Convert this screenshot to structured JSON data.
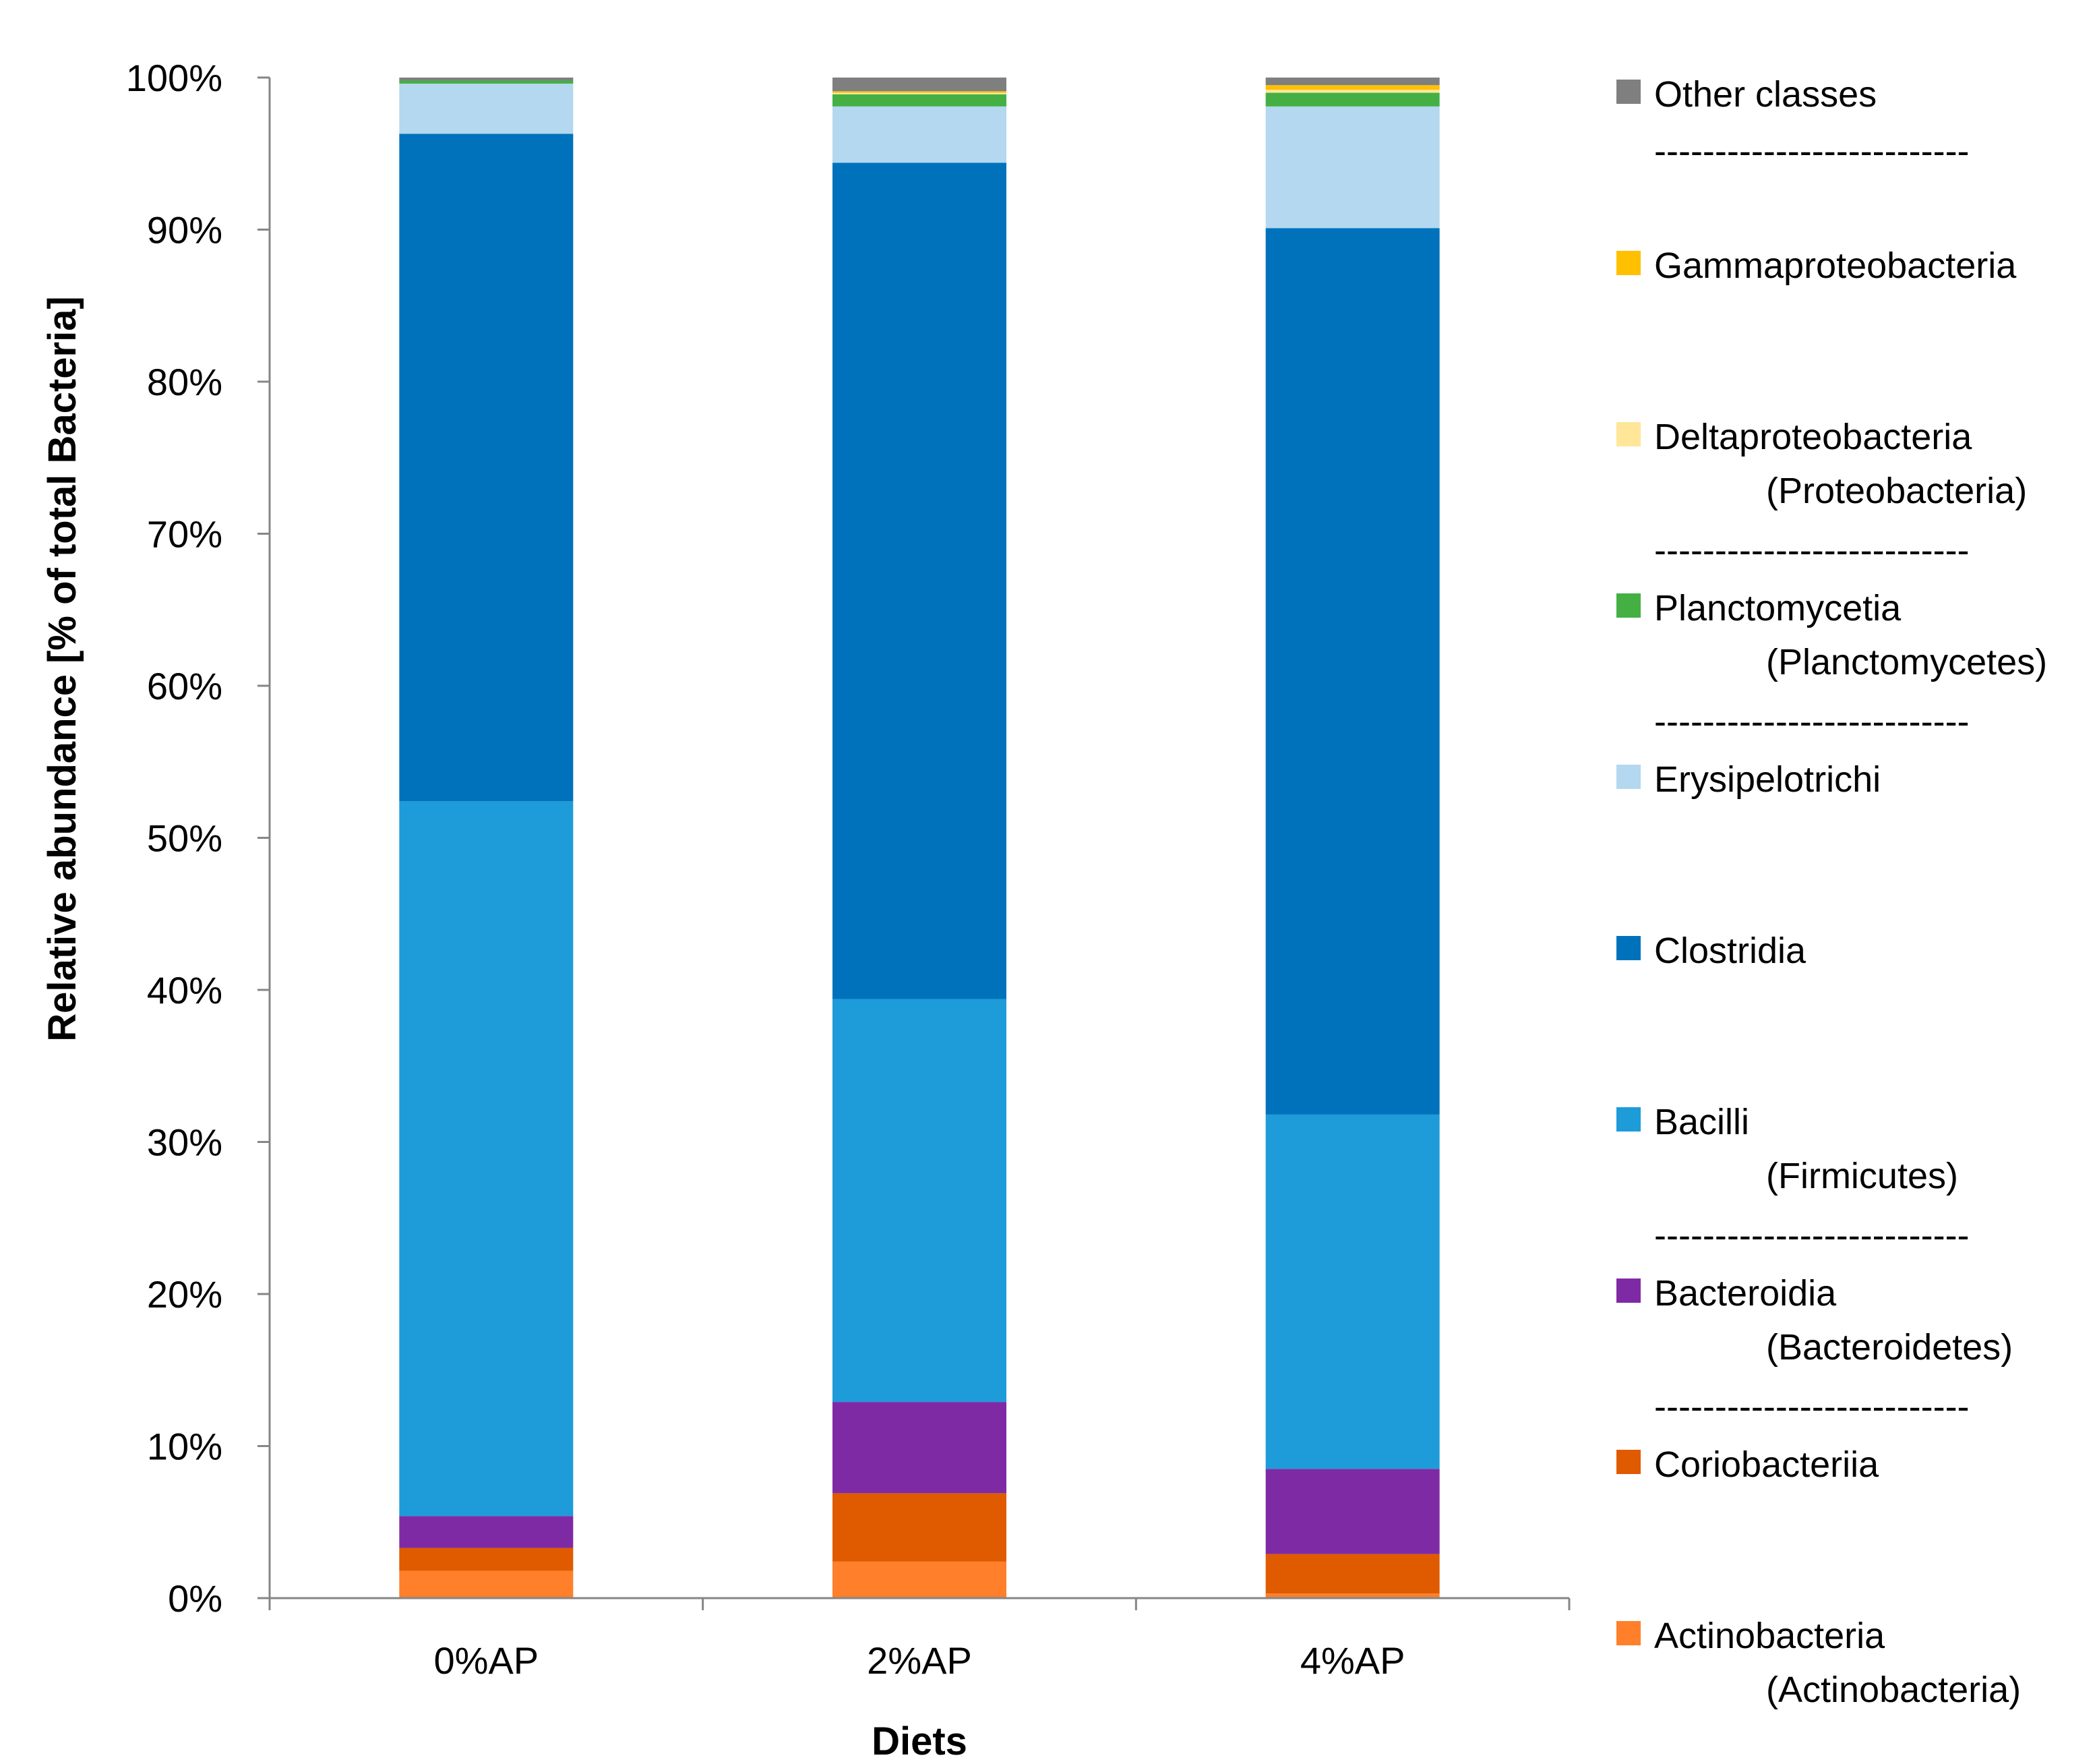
{
  "chart_data": {
    "type": "bar",
    "stacked": true,
    "title": "",
    "xlabel": "Diets",
    "ylabel": "Relative abundance [% of total Bacteria]",
    "ylim": [
      0,
      100
    ],
    "yticks": [
      "0%",
      "10%",
      "20%",
      "30%",
      "40%",
      "50%",
      "60%",
      "70%",
      "80%",
      "90%",
      "100%"
    ],
    "categories": [
      "0%AP",
      "2%AP",
      "4%AP"
    ],
    "series": [
      {
        "name": "Actinobacteria",
        "color": "#FF7F2A",
        "values": [
          1.8,
          2.4,
          0.3
        ]
      },
      {
        "name": "Coriobacteriia",
        "color": "#E05A00",
        "values": [
          1.5,
          4.5,
          2.6
        ]
      },
      {
        "name": "Bacteroidia",
        "color": "#7F2AA5",
        "values": [
          2.1,
          6.0,
          5.6
        ]
      },
      {
        "name": "Bacilli",
        "color": "#1E9BD9",
        "values": [
          47.0,
          26.5,
          23.3
        ]
      },
      {
        "name": "Clostridia",
        "color": "#0072BB",
        "values": [
          43.9,
          55.0,
          58.3
        ]
      },
      {
        "name": "Erysipelotrichi",
        "color": "#B3D8EF",
        "values": [
          3.3,
          3.7,
          8.0
        ]
      },
      {
        "name": "Planctomycetia",
        "color": "#44B044",
        "values": [
          0.2,
          0.8,
          0.9
        ]
      },
      {
        "name": "Deltaproteobacteria",
        "color": "#FFE699",
        "values": [
          0.0,
          0.1,
          0.2
        ]
      },
      {
        "name": "Gammaproteobacteria",
        "color": "#FFC000",
        "values": [
          0.0,
          0.1,
          0.3
        ]
      },
      {
        "name": "Other classes",
        "color": "#7F7F7F",
        "values": [
          0.2,
          0.9,
          0.5
        ]
      }
    ],
    "legend": {
      "position": "right",
      "separator": "--------------------------",
      "entries": [
        {
          "series": "Other classes",
          "label": "Other classes",
          "phylum": "",
          "separator_after": true
        },
        {
          "series": "Gammaproteobacteria",
          "label": "Gammaproteobacteria",
          "phylum": "",
          "separator_after": false
        },
        {
          "series": "Deltaproteobacteria",
          "label": "Deltaproteobacteria",
          "phylum": "(Proteobacteria)",
          "separator_after": true
        },
        {
          "series": "Planctomycetia",
          "label": "Planctomycetia",
          "phylum": "(Planctomycetes)",
          "separator_after": true
        },
        {
          "series": "Erysipelotrichi",
          "label": "Erysipelotrichi",
          "phylum": "",
          "separator_after": false
        },
        {
          "series": "Clostridia",
          "label": "Clostridia",
          "phylum": "",
          "separator_after": false
        },
        {
          "series": "Bacilli",
          "label": "Bacilli",
          "phylum": "(Firmicutes)",
          "separator_after": true
        },
        {
          "series": "Bacteroidia",
          "label": "Bacteroidia",
          "phylum": "(Bacteroidetes)",
          "separator_after": true
        },
        {
          "series": "Coriobacteriia",
          "label": "Coriobacteriia",
          "phylum": "",
          "separator_after": false
        },
        {
          "series": "Actinobacteria",
          "label": "Actinobacteria",
          "phylum": "(Actinobacteria)",
          "separator_after": false
        }
      ]
    }
  }
}
